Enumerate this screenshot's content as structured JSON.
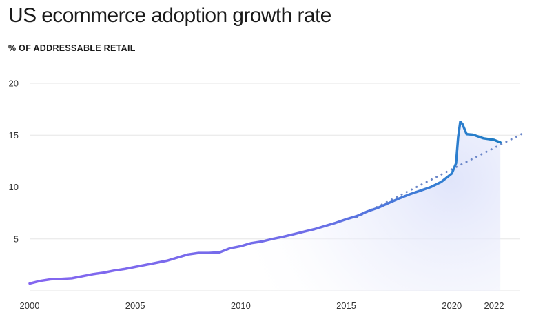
{
  "header": {
    "title": "US ecommerce adoption growth rate",
    "subtitle": "% OF ADDRESSABLE RETAIL"
  },
  "chart_data": {
    "type": "line",
    "title": "US ecommerce adoption growth rate",
    "ylabel": "% OF ADDRESSABLE RETAIL",
    "xlabel": "",
    "xlim": [
      2000,
      2023.5
    ],
    "ylim": [
      0,
      20
    ],
    "x_ticks": [
      "2000",
      "2005",
      "2010",
      "2015",
      "2020",
      "2022"
    ],
    "y_ticks": [
      "5",
      "10",
      "15",
      "20"
    ],
    "grid": true,
    "colors": {
      "historical": "#7b68ee",
      "recent": "#1f7bc4",
      "trend": "#6a86c9",
      "fill": "#dde2fa"
    },
    "series": [
      {
        "style": "solid",
        "points": [
          [
            2000.0,
            0.7
          ],
          [
            2000.5,
            0.95
          ],
          [
            2001.0,
            1.1
          ],
          [
            2001.5,
            1.15
          ],
          [
            2002.0,
            1.2
          ],
          [
            2002.5,
            1.4
          ],
          [
            2003.0,
            1.6
          ],
          [
            2003.5,
            1.75
          ],
          [
            2004.0,
            1.95
          ],
          [
            2004.5,
            2.1
          ],
          [
            2005.0,
            2.3
          ],
          [
            2005.5,
            2.5
          ],
          [
            2006.0,
            2.7
          ],
          [
            2006.5,
            2.9
          ],
          [
            2007.0,
            3.2
          ],
          [
            2007.5,
            3.5
          ],
          [
            2008.0,
            3.65
          ],
          [
            2008.5,
            3.65
          ],
          [
            2009.0,
            3.7
          ],
          [
            2009.5,
            4.1
          ],
          [
            2010.0,
            4.3
          ],
          [
            2010.5,
            4.6
          ],
          [
            2011.0,
            4.75
          ],
          [
            2011.5,
            5.0
          ],
          [
            2012.0,
            5.2
          ],
          [
            2012.5,
            5.45
          ],
          [
            2013.0,
            5.7
          ],
          [
            2013.5,
            5.95
          ],
          [
            2014.0,
            6.25
          ],
          [
            2014.5,
            6.55
          ],
          [
            2015.0,
            6.9
          ],
          [
            2015.5,
            7.2
          ],
          [
            2016.0,
            7.65
          ],
          [
            2016.5,
            8.0
          ],
          [
            2017.0,
            8.45
          ],
          [
            2017.5,
            8.9
          ],
          [
            2018.0,
            9.3
          ],
          [
            2018.5,
            9.65
          ],
          [
            2019.0,
            10.0
          ],
          [
            2019.5,
            10.5
          ],
          [
            2020.0,
            11.3
          ],
          [
            2020.2,
            12.3
          ],
          [
            2020.3,
            14.8
          ],
          [
            2020.4,
            16.3
          ],
          [
            2020.5,
            16.1
          ],
          [
            2020.7,
            15.1
          ],
          [
            2021.0,
            15.05
          ],
          [
            2021.5,
            14.7
          ],
          [
            2022.0,
            14.55
          ],
          [
            2022.3,
            14.3
          ]
        ]
      },
      {
        "style": "dotted",
        "points": [
          [
            2015.5,
            7.1
          ],
          [
            2023.3,
            15.1
          ]
        ]
      }
    ]
  }
}
